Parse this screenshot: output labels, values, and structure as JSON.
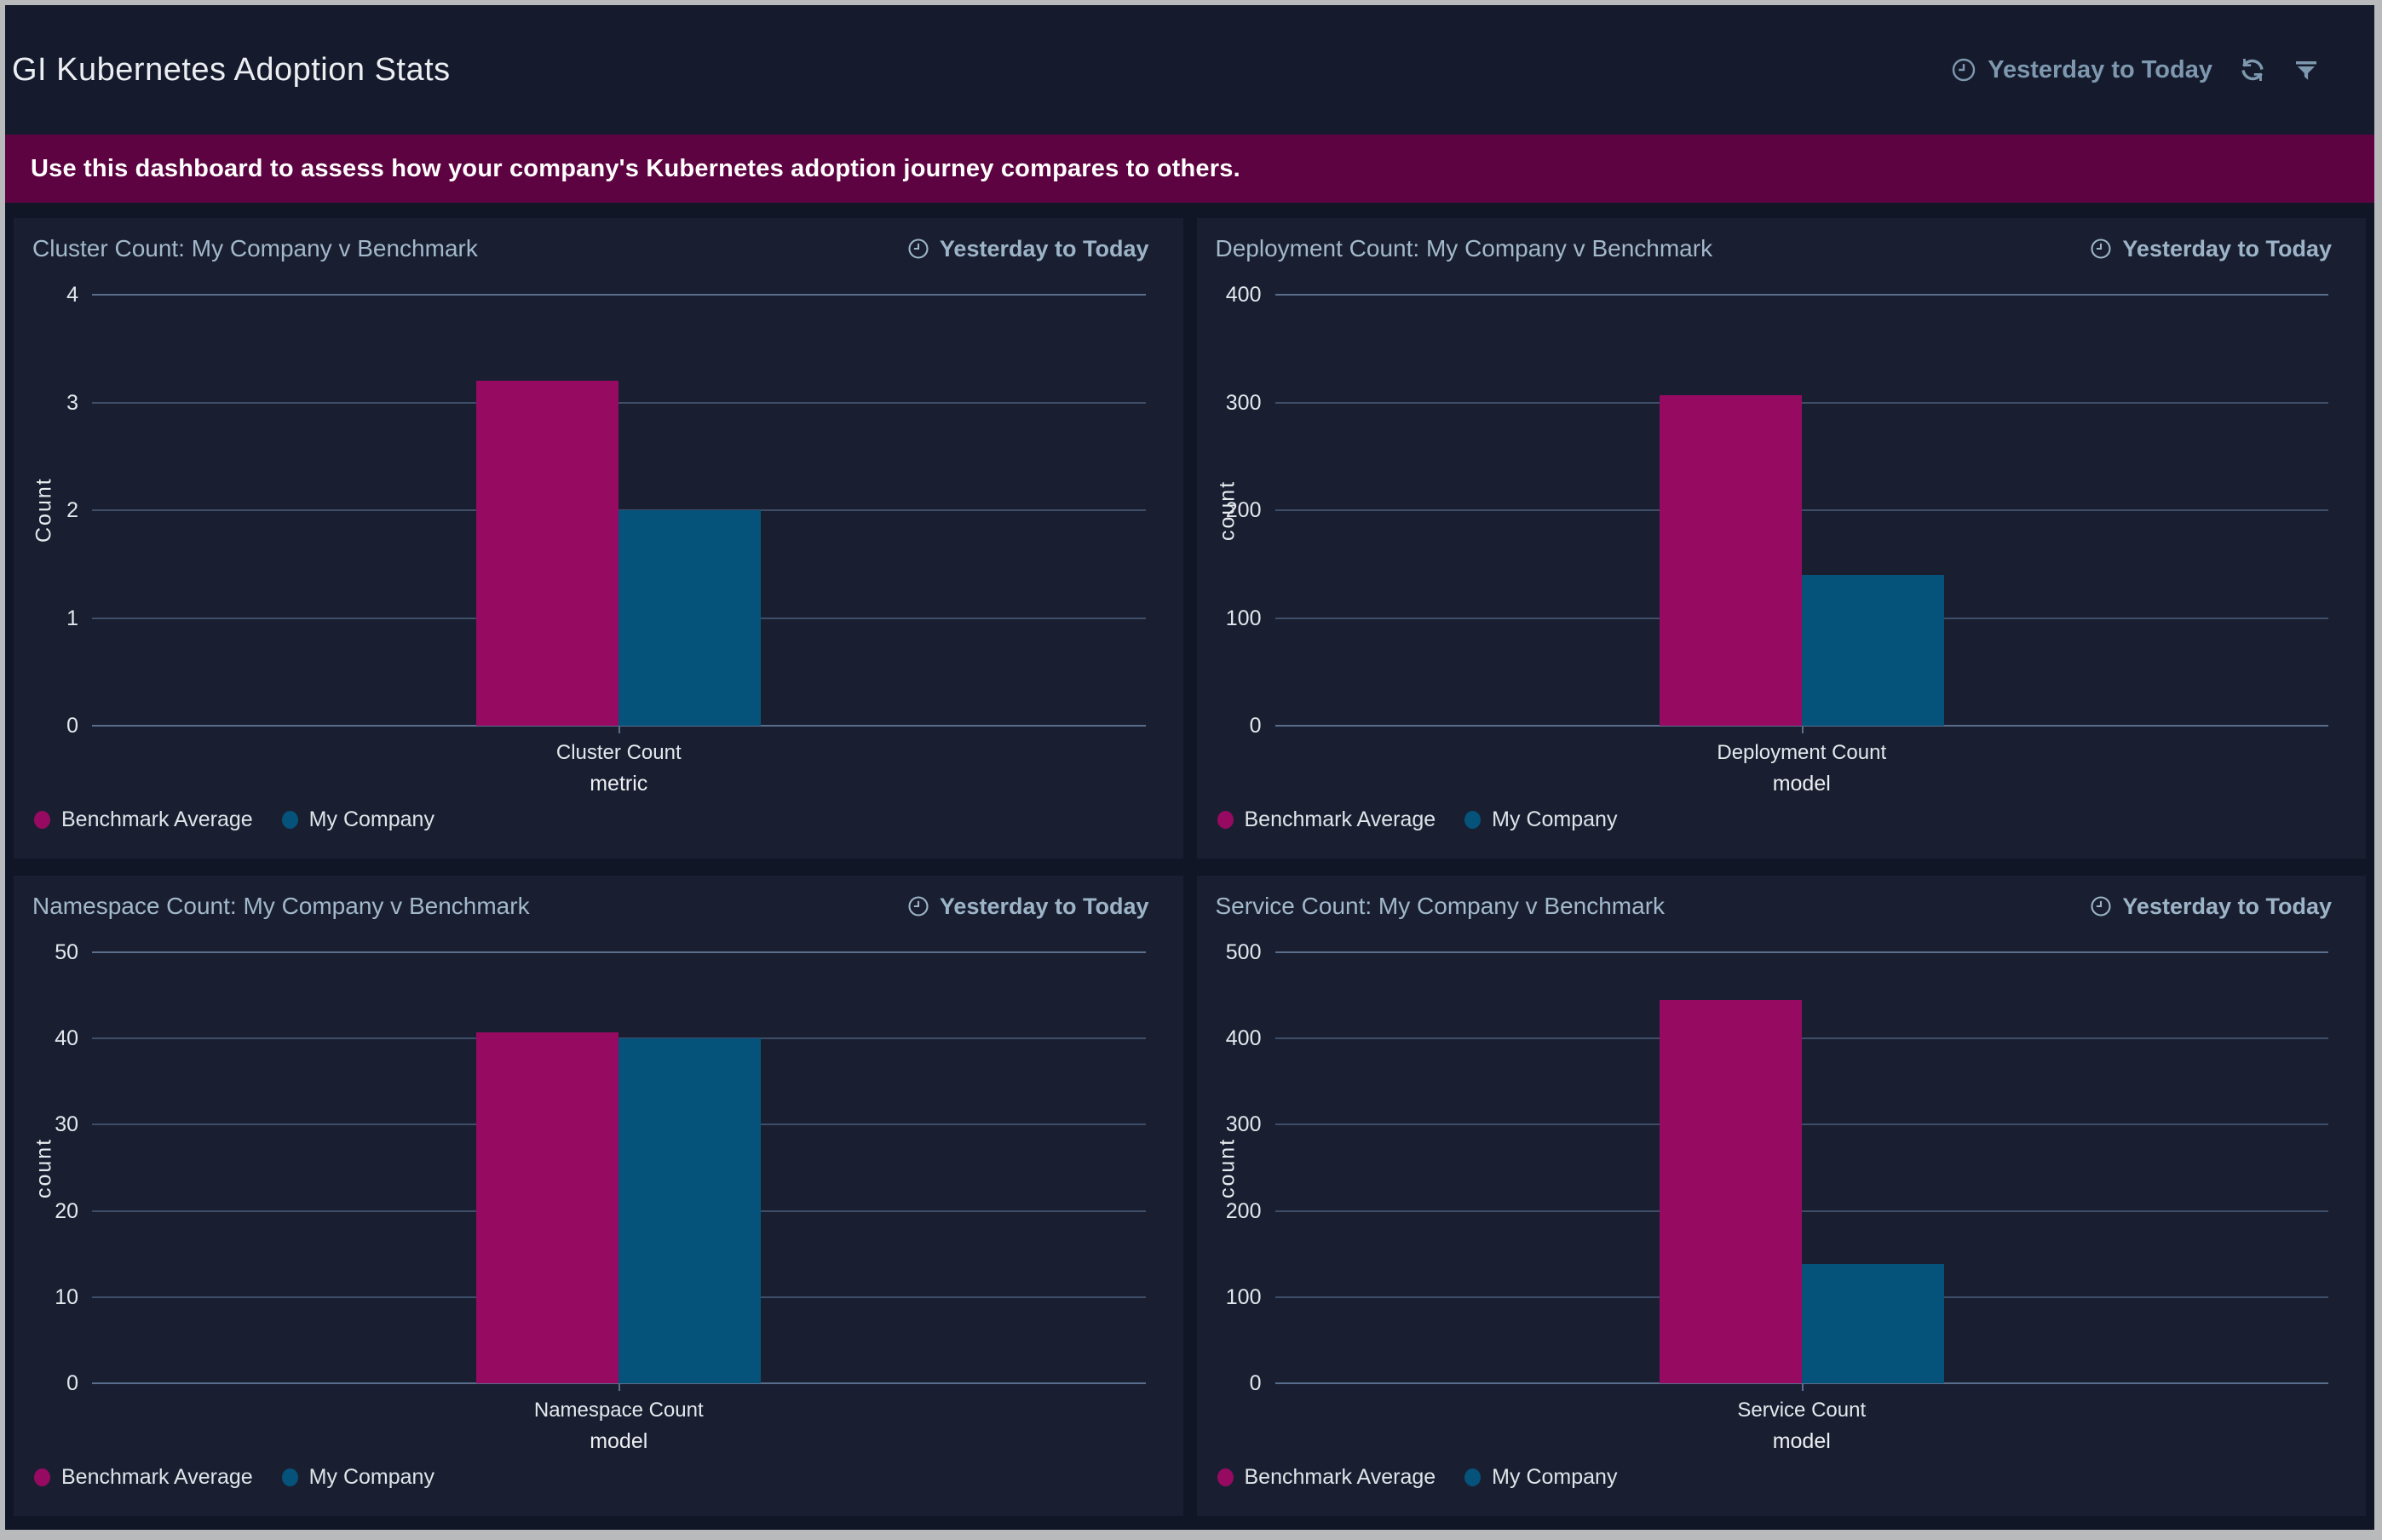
{
  "app": {
    "title": "GI Kubernetes Adoption Stats",
    "timerange": "Yesterday to Today",
    "banner": "Use this dashboard to assess how your company's Kubernetes adoption journey compares to others.",
    "icons": {
      "clock": "clock-icon",
      "refresh": "refresh-icon",
      "filter": "filter-funnel-icon",
      "kebab": "kebab-menu-icon"
    }
  },
  "colors": {
    "benchmark_magenta": "#960a62",
    "company_teal": "#05537b",
    "banner_bg": "#5e0341",
    "panel_bg": "#191f31",
    "page_bg": "#111626",
    "gridline": "#3e4d68",
    "axis_strong": "#5a6e8c",
    "accent_text": "#9db4c8"
  },
  "chart_data": [
    {
      "type": "bar",
      "title": "Cluster Count: My Company v Benchmark",
      "timerange": "Yesterday to Today",
      "categories": [
        "Cluster Count"
      ],
      "xlabel": "metric",
      "ylabel": "Count",
      "ylim": [
        0,
        4
      ],
      "yticks": [
        0,
        1,
        2,
        3,
        4
      ],
      "grid": true,
      "legend_position": "bottom-left",
      "series": [
        {
          "name": "Benchmark Average",
          "values": [
            3.2
          ],
          "color": "#960a62"
        },
        {
          "name": "My Company",
          "values": [
            2
          ],
          "color": "#05537b"
        }
      ]
    },
    {
      "type": "bar",
      "title": "Deployment Count: My Company v Benchmark",
      "timerange": "Yesterday to Today",
      "categories": [
        "Deployment Count"
      ],
      "xlabel": "model",
      "ylabel": "count",
      "ylim": [
        0,
        400
      ],
      "yticks": [
        0,
        100,
        200,
        300,
        400
      ],
      "grid": true,
      "legend_position": "bottom-left",
      "series": [
        {
          "name": "Benchmark Average",
          "values": [
            307
          ],
          "color": "#960a62"
        },
        {
          "name": "My Company",
          "values": [
            140
          ],
          "color": "#05537b"
        }
      ]
    },
    {
      "type": "bar",
      "title": "Namespace Count: My Company v Benchmark",
      "timerange": "Yesterday to Today",
      "categories": [
        "Namespace Count"
      ],
      "xlabel": "model",
      "ylabel": "count",
      "ylim": [
        0,
        50
      ],
      "yticks": [
        0,
        10,
        20,
        30,
        40,
        50
      ],
      "grid": true,
      "legend_position": "bottom-left",
      "series": [
        {
          "name": "Benchmark Average",
          "values": [
            40.7
          ],
          "color": "#960a62"
        },
        {
          "name": "My Company",
          "values": [
            40
          ],
          "color": "#05537b"
        }
      ]
    },
    {
      "type": "bar",
      "title": "Service Count: My Company v Benchmark",
      "timerange": "Yesterday to Today",
      "categories": [
        "Service Count"
      ],
      "xlabel": "model",
      "ylabel": "count",
      "ylim": [
        0,
        500
      ],
      "yticks": [
        0,
        100,
        200,
        300,
        400,
        500
      ],
      "grid": true,
      "legend_position": "bottom-left",
      "series": [
        {
          "name": "Benchmark Average",
          "values": [
            445
          ],
          "color": "#960a62"
        },
        {
          "name": "My Company",
          "values": [
            138
          ],
          "color": "#05537b"
        }
      ]
    }
  ]
}
